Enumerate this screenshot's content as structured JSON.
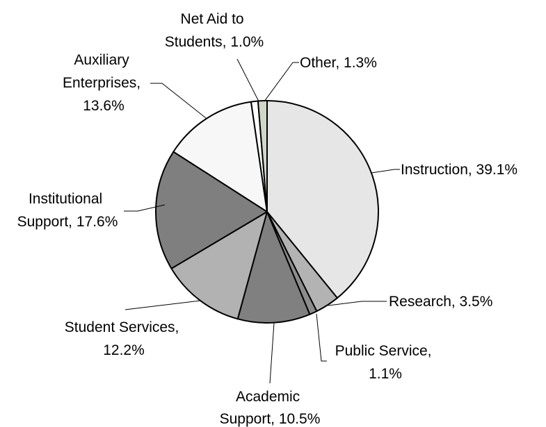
{
  "chart_data": {
    "type": "pie",
    "start_angle_deg": 0,
    "direction": "clockwise",
    "slices": [
      {
        "label": "Instruction, 39.1%",
        "value": 39.1,
        "color": "#e6e6e6"
      },
      {
        "label": "Research, 3.5%",
        "value": 3.5,
        "color": "#b3b3b3"
      },
      {
        "label": "Public Service, 1.1%",
        "value": 1.1,
        "color": "#8c8c8c"
      },
      {
        "label": "Academic Support, 10.5%",
        "value": 10.5,
        "color": "#808080"
      },
      {
        "label": "Student Services, 12.2%",
        "value": 12.2,
        "color": "#b2b2b2"
      },
      {
        "label": "Institutional Support, 17.6%",
        "value": 17.6,
        "color": "#7f7f7f"
      },
      {
        "label": "Auxiliary Enterprises, 13.6%",
        "value": 13.6,
        "color": "#f7f7f7"
      },
      {
        "label": "Net Aid to Students, 1.0%",
        "value": 1.0,
        "color": "#ffffff"
      },
      {
        "label": "Other, 1.3%",
        "value": 1.3,
        "color": "#cfd7c7"
      }
    ],
    "labels": {
      "instruction": "Instruction, 39.1%",
      "research": "Research, 3.5%",
      "public_service": [
        "Public Service,",
        "1.1%"
      ],
      "academic_support": [
        "Academic",
        "Support, 10.5%"
      ],
      "student_services": [
        "Student Services,",
        "12.2%"
      ],
      "institutional_support": [
        "Institutional",
        "Support, 17.6%"
      ],
      "auxiliary_enterprises": [
        "Auxiliary",
        "Enterprises,",
        "13.6%"
      ],
      "net_aid": [
        "Net Aid to",
        "Students, 1.0%"
      ],
      "other": "Other, 1.3%"
    },
    "legend": "none",
    "title": ""
  }
}
